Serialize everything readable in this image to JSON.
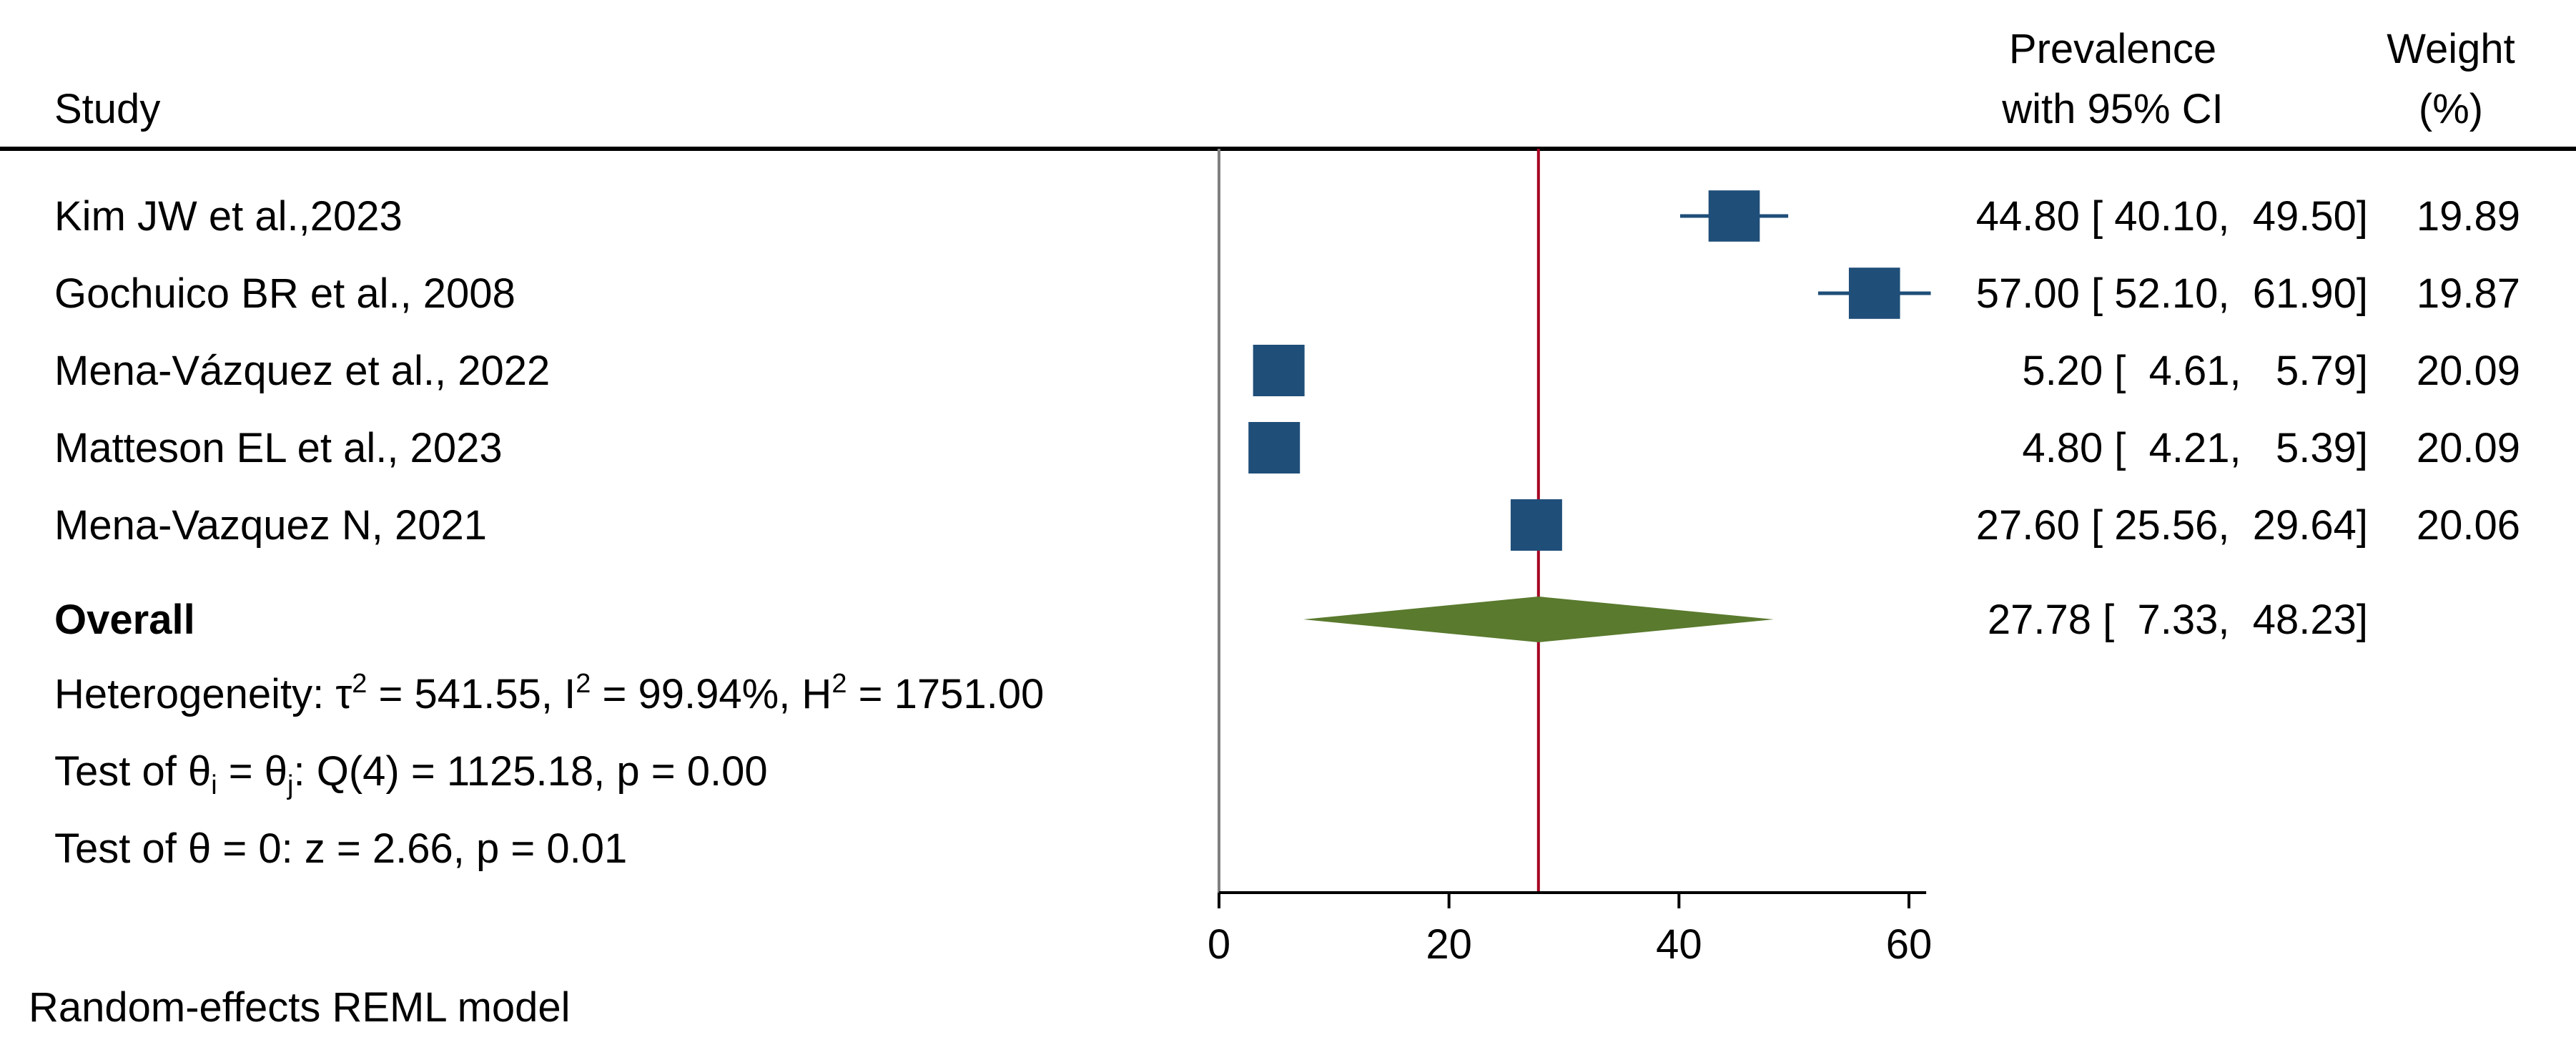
{
  "chart_data": {
    "type": "forest",
    "header": {
      "study": "Study",
      "effect_line1": "Prevalence",
      "effect_line2": "with 95% CI",
      "weight_line1": "Weight",
      "weight_line2": "(%)"
    },
    "studies": [
      {
        "label": "Kim JW et al.,2023",
        "estimate": 44.8,
        "ci_low": 40.1,
        "ci_high": 49.5,
        "weight": 19.89,
        "ci_text": "44.80 [ 40.10,  49.50]",
        "weight_text": "19.89"
      },
      {
        "label": "Gochuico BR et al., 2008",
        "estimate": 57.0,
        "ci_low": 52.1,
        "ci_high": 61.9,
        "weight": 19.87,
        "ci_text": "57.00 [ 52.10,  61.90]",
        "weight_text": "19.87"
      },
      {
        "label": "Mena-Vázquez et al., 2022",
        "estimate": 5.2,
        "ci_low": 4.61,
        "ci_high": 5.79,
        "weight": 20.09,
        "ci_text": "5.20 [  4.61,   5.79]",
        "weight_text": "20.09"
      },
      {
        "label": "Matteson EL et al., 2023",
        "estimate": 4.8,
        "ci_low": 4.21,
        "ci_high": 5.39,
        "weight": 20.09,
        "ci_text": "4.80 [  4.21,   5.39]",
        "weight_text": "20.09"
      },
      {
        "label": "Mena-Vazquez N, 2021",
        "estimate": 27.6,
        "ci_low": 25.56,
        "ci_high": 29.64,
        "weight": 20.06,
        "ci_text": "27.60 [ 25.56,  29.64]",
        "weight_text": "20.06"
      }
    ],
    "overall": {
      "label": "Overall",
      "estimate": 27.78,
      "ci_low": 7.33,
      "ci_high": 48.23,
      "ci_text": "27.78 [  7.33,  48.23]"
    },
    "stats": {
      "heterogeneity": {
        "prefix": "Heterogeneity: τ",
        "tau_sup": "2",
        "tau_val": " = 541.55, I",
        "i_sup": "2",
        "i_val": " = 99.94%, H",
        "h_sup": "2",
        "h_val": " = 1751.00"
      },
      "test_theta_equal": {
        "prefix": "Test of θ",
        "sub_i": "i",
        "middle": " = θ",
        "sub_j": "j",
        "rest": ": Q(4) = 1125.18, p = 0.00"
      },
      "test_theta_zero": "Test of θ = 0: z = 2.66, p = 0.01"
    },
    "x_axis": {
      "ticks": [
        0,
        20,
        40,
        60
      ],
      "tick_labels": [
        "0",
        "20",
        "40",
        "60"
      ],
      "range": [
        0,
        61.5
      ]
    },
    "footnote": "Random-effects REML model",
    "colors": {
      "marker": "#1f4e79",
      "diamond": "#5a7a2e",
      "overall_line": "#a50021",
      "null_line": "#808080",
      "text": "#000000"
    }
  }
}
